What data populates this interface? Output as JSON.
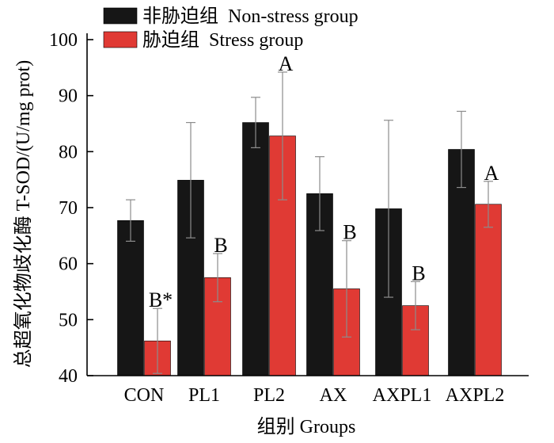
{
  "chart_data": {
    "type": "bar",
    "categories": [
      "CON",
      "PL1",
      "PL2",
      "AX",
      "AXPL1",
      "AXPL2"
    ],
    "series": [
      {
        "name": "非胁迫组  Non-stress group",
        "color": "#161616",
        "values": [
          67.7,
          74.9,
          85.2,
          72.5,
          69.8,
          80.4
        ],
        "errors": [
          3.7,
          10.3,
          4.5,
          6.6,
          15.8,
          6.8
        ],
        "annotations": [
          "",
          "",
          "",
          "",
          "",
          ""
        ]
      },
      {
        "name": "胁迫组  Stress group",
        "color": "#e03a34",
        "values": [
          46.2,
          57.5,
          82.8,
          55.5,
          52.5,
          70.6
        ],
        "errors": [
          5.8,
          4.3,
          11.4,
          8.6,
          4.3,
          4.1
        ],
        "annotations": [
          "B*",
          "B",
          "A",
          "B",
          "B",
          "A"
        ]
      }
    ],
    "title": "",
    "xlabel": "组别 Groups",
    "ylabel": "总超氧化物歧化酶  T-SOD/(U/mg prot)",
    "ylim": [
      40,
      100
    ],
    "yticks": [
      "40",
      "50",
      "60",
      "70",
      "80",
      "90",
      "100"
    ],
    "grid": false,
    "legend_position": "top-left"
  }
}
